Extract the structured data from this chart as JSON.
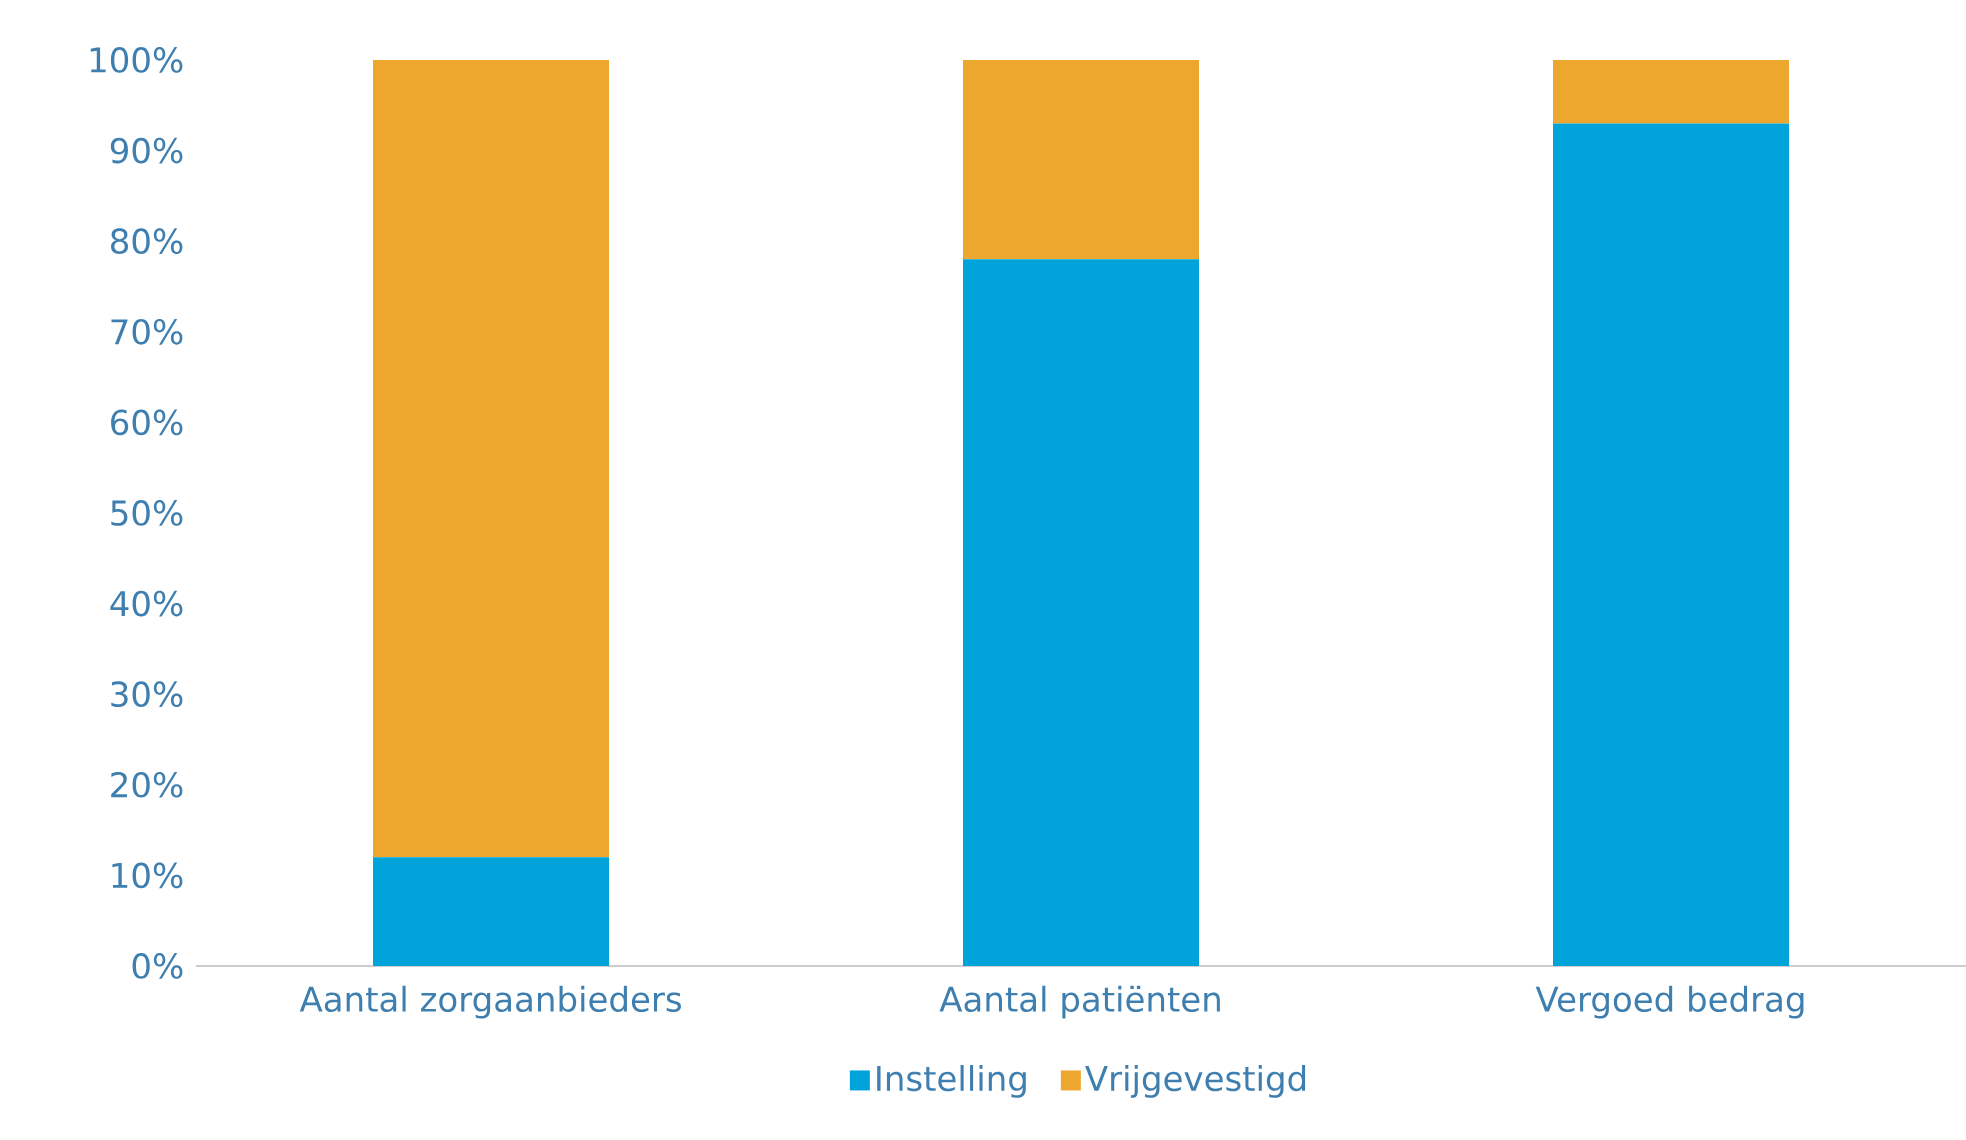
{
  "chart_data": {
    "type": "bar",
    "stacked": true,
    "legend": "bottom",
    "categories": [
      "Aantal zorgaanbieders",
      "Aantal patiënten",
      "Vergoed bedrag"
    ],
    "series": [
      {
        "name": "Instelling",
        "color": "#00a3da",
        "values": [
          12,
          78,
          93
        ]
      },
      {
        "name": "Vrijgevestigd",
        "color": "#eda72f",
        "values": [
          88,
          22,
          7
        ]
      }
    ],
    "ylim": [
      0,
      100
    ],
    "yticks": [
      {
        "value": 0,
        "label": "0%"
      },
      {
        "value": 10,
        "label": "10%"
      },
      {
        "value": 20,
        "label": "20%"
      },
      {
        "value": 30,
        "label": "30%"
      },
      {
        "value": 40,
        "label": "40%"
      },
      {
        "value": 50,
        "label": "50%"
      },
      {
        "value": 60,
        "label": "60%"
      },
      {
        "value": 70,
        "label": "70%"
      },
      {
        "value": 80,
        "label": "80%"
      },
      {
        "value": 90,
        "label": "90%"
      },
      {
        "value": 100,
        "label": "100%"
      }
    ]
  }
}
